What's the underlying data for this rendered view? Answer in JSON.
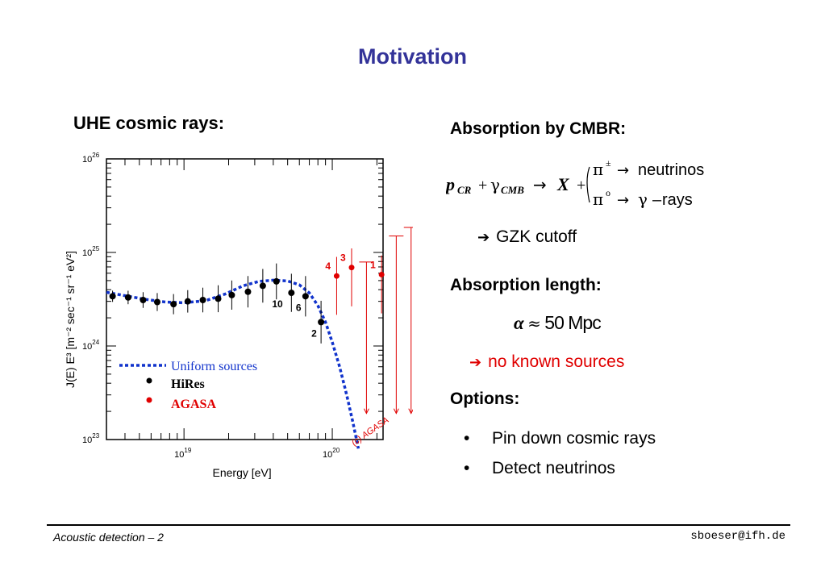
{
  "slide": {
    "title": "Motivation",
    "left_heading": "UHE cosmic rays:",
    "absorption_cmbr": "Absorption by CMBR:",
    "formula": {
      "p": "p",
      "p_sub": "CR",
      "plus": "+",
      "gamma": "γ",
      "gamma_sub": "CMB",
      "arrow": "→",
      "X": "X",
      "line1_pi": "π",
      "line1_sup": "±",
      "line1_arrow": "→",
      "line1_text": "neutrinos",
      "line2_pi": "π",
      "line2_sup": "o",
      "line2_arrow": "→",
      "line2_gamma": "γ",
      "line2_dash": "–",
      "line2_text": "rays"
    },
    "gzk": "GZK cutoff",
    "arrow_symbol": "➔",
    "absorption_length": "Absorption length:",
    "alpha": "α",
    "approx": "≈",
    "alpha_value": "50 Mpc",
    "no_sources": "no known sources",
    "options_heading": "Options:",
    "bullet_char": "•",
    "bullets": [
      "Pin down cosmic rays",
      "Detect neutrinos"
    ],
    "footer_left": "Acoustic detection – 2",
    "footer_right": "sboeser@ifh.de",
    "title_color": "#333399",
    "red_color": "#e00000"
  },
  "chart_data": {
    "type": "scatter",
    "xlabel": "Energy [eV]",
    "ylabel": "J(E) E³ [m⁻² sec⁻¹ sr⁻¹ eV²]",
    "x_scale": "log",
    "y_scale": "log",
    "xlim": [
      3e+18,
      2.2e+20
    ],
    "ylim": [
      1e+23,
      1e+26
    ],
    "x_ticks": [
      {
        "value": 1e+19,
        "base": "10",
        "exp": "19"
      },
      {
        "value": 1e+20,
        "base": "10",
        "exp": "20"
      }
    ],
    "y_ticks": [
      {
        "value": 1e+23,
        "base": "10",
        "exp": "23"
      },
      {
        "value": 1e+24,
        "base": "10",
        "exp": "24"
      },
      {
        "value": 1e+25,
        "base": "10",
        "exp": "25"
      },
      {
        "value": 1e+26,
        "base": "10",
        "exp": "26"
      }
    ],
    "legend": {
      "placement": "bottom-left",
      "model": "Uniform sources",
      "hires": "HiRes",
      "agasa": "AGASA"
    },
    "watermark": "(c) AGASA",
    "colors": {
      "hires": "#000000",
      "agasa": "#e00000",
      "model": "#1133cc"
    },
    "series": [
      {
        "name": "HiRes",
        "points": [
          {
            "x": 3.3e+18,
            "y": 3.4e+24
          },
          {
            "x": 4.2e+18,
            "y": 3.3e+24
          },
          {
            "x": 5.3e+18,
            "y": 3.1e+24
          },
          {
            "x": 6.6e+18,
            "y": 2.95e+24
          },
          {
            "x": 8.5e+18,
            "y": 2.8e+24
          },
          {
            "x": 1.06e+19,
            "y": 3e+24
          },
          {
            "x": 1.34e+19,
            "y": 3.1e+24
          },
          {
            "x": 1.7e+19,
            "y": 3.2e+24
          },
          {
            "x": 2.1e+19,
            "y": 3.5e+24
          },
          {
            "x": 2.7e+19,
            "y": 3.8e+24
          },
          {
            "x": 3.4e+19,
            "y": 4.4e+24
          },
          {
            "x": 4.2e+19,
            "y": 4.9e+24
          },
          {
            "x": 5.3e+19,
            "y": 3.7e+24
          },
          {
            "x": 6.6e+19,
            "y": 3.4e+24
          },
          {
            "x": 8.4e+19,
            "y": 1.8e+24
          }
        ],
        "point_labels": [
          {
            "index": 12,
            "text": "10"
          },
          {
            "index": 13,
            "text": "6"
          },
          {
            "index": 14,
            "text": "2"
          }
        ]
      },
      {
        "name": "AGASA",
        "points": [
          {
            "x": 1.07e+20,
            "y": 5.6e+24
          },
          {
            "x": 1.35e+20,
            "y": 6.9e+24
          },
          {
            "x": 2.15e+20,
            "y": 5.8e+24
          }
        ],
        "point_labels": [
          {
            "index": 0,
            "text": "4"
          },
          {
            "index": 1,
            "text": "3"
          },
          {
            "index": 2,
            "text": "1"
          }
        ],
        "upper_limits": [
          {
            "x": 1.7e+20,
            "y": 7.9e+24
          },
          {
            "x": 2.7e+20,
            "y": 1.5e+25
          },
          {
            "x": 3.4e+20,
            "y": 1.85e+25
          }
        ]
      },
      {
        "name": "Uniform sources",
        "curve": [
          {
            "x": 3e+18,
            "y": 3.75e+24
          },
          {
            "x": 4e+18,
            "y": 3.45e+24
          },
          {
            "x": 5.5e+18,
            "y": 3.15e+24
          },
          {
            "x": 7.5e+18,
            "y": 2.95e+24
          },
          {
            "x": 1e+19,
            "y": 2.9e+24
          },
          {
            "x": 1.4e+19,
            "y": 3.05e+24
          },
          {
            "x": 1.9e+19,
            "y": 3.6e+24
          },
          {
            "x": 2.5e+19,
            "y": 4.4e+24
          },
          {
            "x": 3.2e+19,
            "y": 4.9e+24
          },
          {
            "x": 4e+19,
            "y": 5.05e+24
          },
          {
            "x": 5e+19,
            "y": 4.95e+24
          },
          {
            "x": 6e+19,
            "y": 4.5e+24
          },
          {
            "x": 7e+19,
            "y": 3.7e+24
          },
          {
            "x": 8e+19,
            "y": 2.7e+24
          },
          {
            "x": 9e+19,
            "y": 1.8e+24
          },
          {
            "x": 1e+20,
            "y": 1.1e+24
          },
          {
            "x": 1.12e+20,
            "y": 6e+23
          },
          {
            "x": 1.25e+20,
            "y": 3e+23
          },
          {
            "x": 1.38e+20,
            "y": 1.5e+23
          },
          {
            "x": 1.5e+20,
            "y": 8e+22
          }
        ]
      }
    ]
  }
}
